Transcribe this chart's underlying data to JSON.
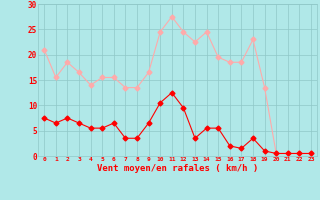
{
  "hours": [
    0,
    1,
    2,
    3,
    4,
    5,
    6,
    7,
    8,
    9,
    10,
    11,
    12,
    13,
    14,
    15,
    16,
    17,
    18,
    19,
    20,
    21,
    22,
    23
  ],
  "wind_avg": [
    7.5,
    6.5,
    7.5,
    6.5,
    5.5,
    5.5,
    6.5,
    3.5,
    3.5,
    6.5,
    10.5,
    12.5,
    9.5,
    3.5,
    5.5,
    5.5,
    2.0,
    1.5,
    3.5,
    1.0,
    0.5,
    0.5,
    0.5,
    0.5
  ],
  "wind_gust": [
    21,
    15.5,
    18.5,
    16.5,
    14,
    15.5,
    15.5,
    13.5,
    13.5,
    16.5,
    24.5,
    27.5,
    24.5,
    22.5,
    24.5,
    19.5,
    18.5,
    18.5,
    23.0,
    13.5,
    0.5,
    0.5,
    0.5,
    0.5
  ],
  "avg_color": "#ff0000",
  "gust_color": "#ffaaaa",
  "bg_color": "#b0e8e8",
  "grid_color": "#90c8c8",
  "xlabel": "Vent moyen/en rafales ( km/h )",
  "xlabel_color": "#ff0000",
  "tick_color": "#ff0000",
  "ylim": [
    0,
    30
  ],
  "yticks": [
    0,
    5,
    10,
    15,
    20,
    25,
    30
  ],
  "xlim": [
    -0.5,
    23.5
  ],
  "markersize": 2.5,
  "linewidth": 0.8
}
